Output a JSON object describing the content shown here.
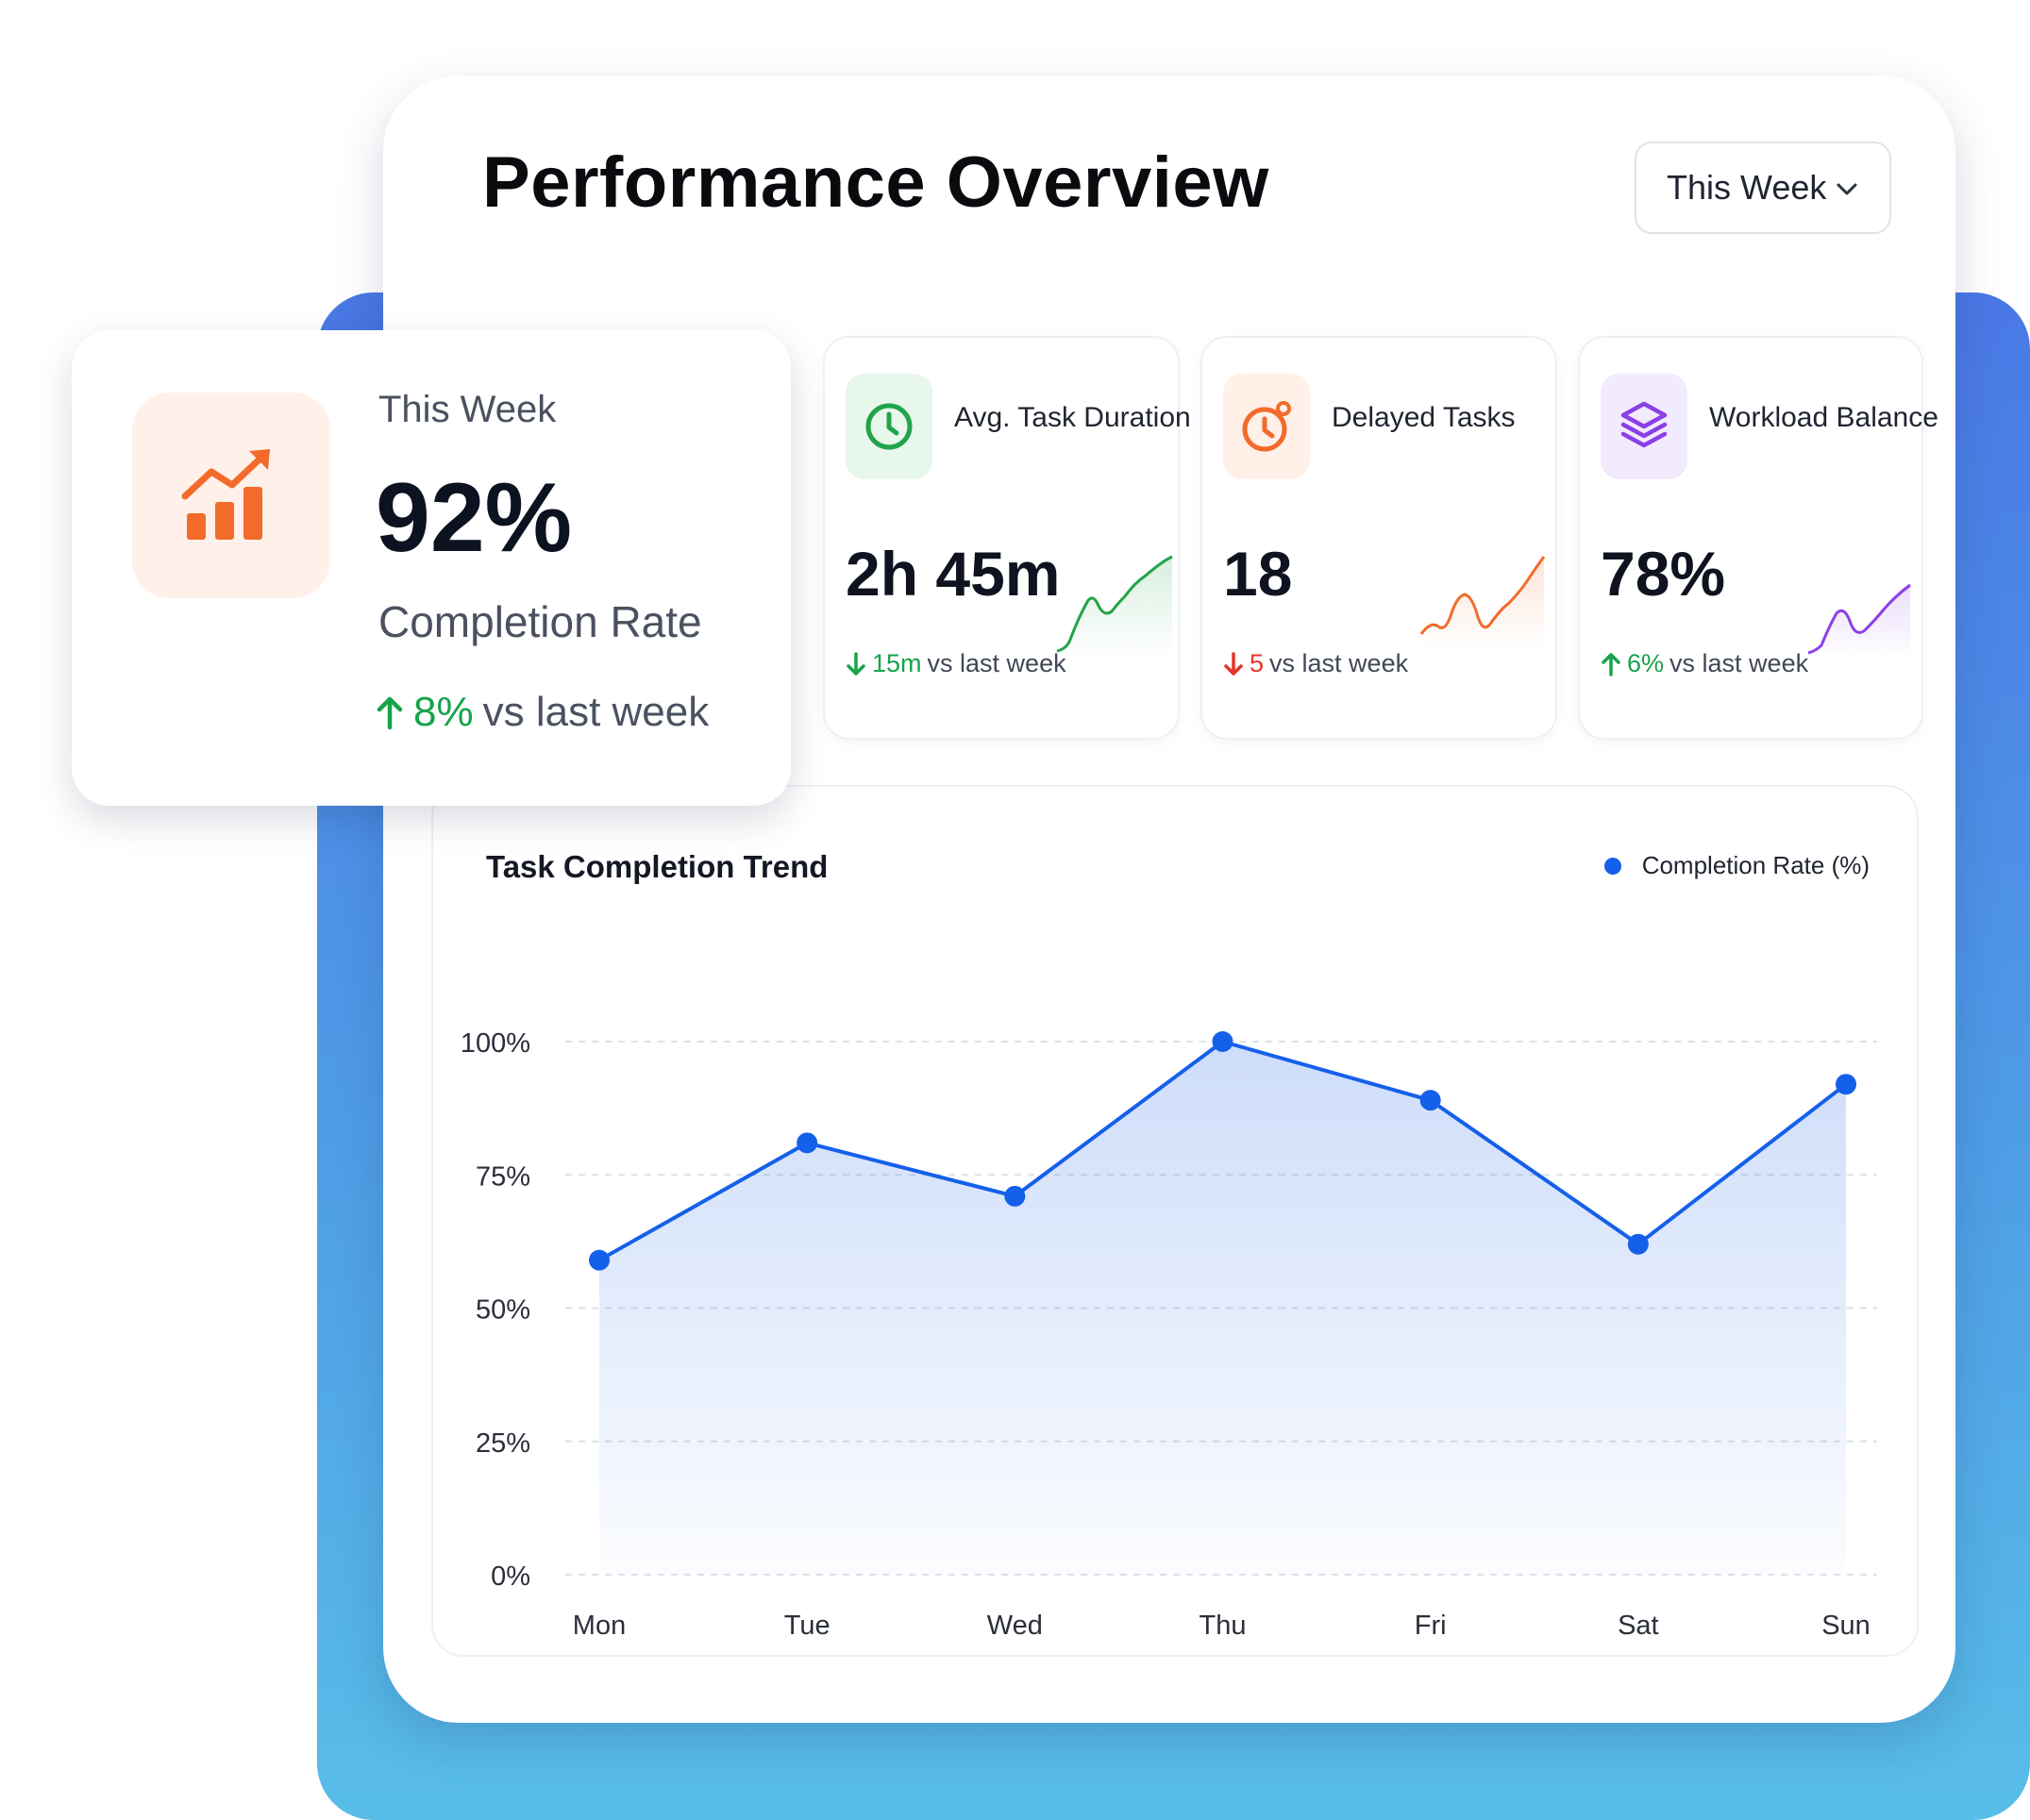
{
  "header": {
    "title": "Performance Overview",
    "period_select": "This Week"
  },
  "highlight": {
    "period": "This Week",
    "value": "92%",
    "label": "Completion Rate",
    "delta_value": "8%",
    "delta_suffix": "vs last week",
    "icon": "bar-chart-trend-up-icon"
  },
  "kpis": [
    {
      "title": "Avg. Task Duration",
      "value": "2h 45m",
      "delta_value": "15m",
      "delta_suffix": "vs last week",
      "direction": "down",
      "delta_color": "#17a34a",
      "icon": "clock-icon",
      "color": "#22a44a",
      "icon_bg": "#e8f7ec"
    },
    {
      "title": "Delayed Tasks",
      "value": "18",
      "delta_value": "5",
      "delta_suffix": "vs last week",
      "direction": "down",
      "delta_color": "#e5342a",
      "icon": "stopwatch-icon",
      "color": "#f26b2a",
      "icon_bg": "#fff0e8"
    },
    {
      "title": "Workload Balance",
      "value": "78%",
      "delta_value": "6%",
      "delta_suffix": "vs last week",
      "direction": "up",
      "delta_color": "#17a34a",
      "icon": "layers-icon",
      "color": "#8b3fe8",
      "icon_bg": "#f2ebfd"
    }
  ],
  "chart_data": {
    "type": "line",
    "title": "Task Completion Trend",
    "categories": [
      "Mon",
      "Tue",
      "Wed",
      "Thu",
      "Fri",
      "Sat",
      "Sun"
    ],
    "series": [
      {
        "name": "Completion Rate (%)",
        "values": [
          59,
          81,
          71,
          100,
          89,
          62,
          92
        ],
        "color": "#1560ea"
      }
    ],
    "ylim": [
      0,
      100
    ],
    "yticks": [
      "0%",
      "25%",
      "50%",
      "75%",
      "100%"
    ],
    "grid": true,
    "legend_position": "top-right",
    "fill": "area"
  },
  "colors": {
    "accent": "#1560ea",
    "positive": "#17a34a",
    "negative": "#e5342a",
    "highlight_icon": "#f26b2a"
  }
}
